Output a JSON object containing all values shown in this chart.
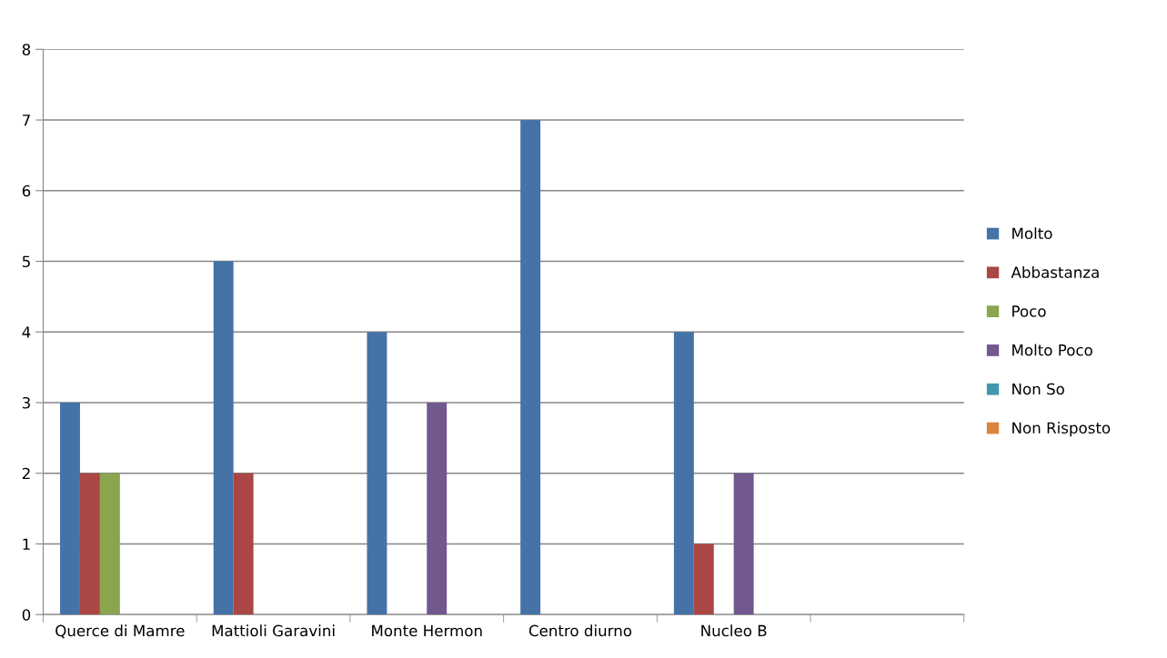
{
  "chart_data": {
    "type": "bar",
    "categories": [
      "Querce di Mamre",
      "Mattioli Garavini",
      "Monte Hermon",
      "Centro diurno",
      "Nucleo B",
      null
    ],
    "series": [
      {
        "name": "Molto",
        "color": "#4572a7",
        "values": [
          3,
          5,
          4,
          7,
          4,
          null
        ]
      },
      {
        "name": "Abbastanza",
        "color": "#aa4643",
        "values": [
          2,
          2,
          null,
          null,
          1,
          null
        ]
      },
      {
        "name": "Poco",
        "color": "#89a54e",
        "values": [
          2,
          null,
          null,
          null,
          null,
          null
        ]
      },
      {
        "name": "Molto Poco",
        "color": "#71588f",
        "values": [
          null,
          null,
          3,
          null,
          2,
          null
        ]
      },
      {
        "name": "Non So",
        "color": "#4198af",
        "values": [
          null,
          null,
          null,
          null,
          null,
          null
        ]
      },
      {
        "name": "Non Risposto",
        "color": "#db843d",
        "values": [
          null,
          null,
          null,
          null,
          null,
          null
        ]
      }
    ],
    "ylim": [
      0,
      8
    ],
    "yticks": [
      0,
      1,
      2,
      3,
      4,
      5,
      6,
      7,
      8
    ],
    "grid": "y",
    "legend": "right"
  }
}
